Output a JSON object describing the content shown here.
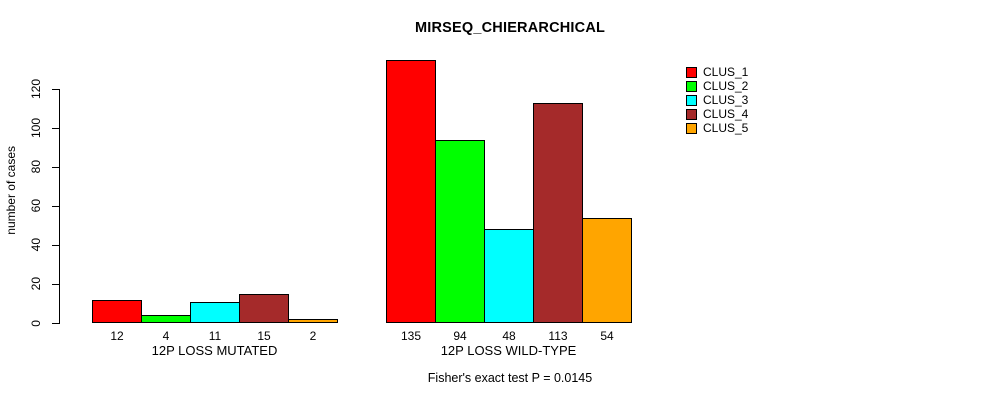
{
  "chart_data": {
    "type": "bar",
    "title": "MIRSEQ_CHIERARCHICAL",
    "ylabel": "number of cases",
    "xlabel": "",
    "yticks": [
      0,
      20,
      40,
      60,
      80,
      100,
      120
    ],
    "ylim": [
      0,
      135
    ],
    "grid": false,
    "legend_position": "top-right",
    "categories": [
      "12P LOSS MUTATED",
      "12P LOSS WILD-TYPE"
    ],
    "series": [
      {
        "name": "CLUS_1",
        "color": "#FF0000",
        "values": [
          12,
          135
        ]
      },
      {
        "name": "CLUS_2",
        "color": "#00FF00",
        "values": [
          4,
          94
        ]
      },
      {
        "name": "CLUS_3",
        "color": "#00FFFF",
        "values": [
          11,
          48
        ]
      },
      {
        "name": "CLUS_4",
        "color": "#A52A2A",
        "values": [
          15,
          113
        ]
      },
      {
        "name": "CLUS_5",
        "color": "#FFA500",
        "values": [
          2,
          54
        ]
      }
    ],
    "bar_value_labels": {
      "12P LOSS MUTATED": [
        12,
        4,
        11,
        15,
        2
      ],
      "12P LOSS WILD-TYPE": [
        135,
        94,
        48,
        113,
        54
      ]
    },
    "caption": "Fisher's exact test P = 0.0145"
  }
}
